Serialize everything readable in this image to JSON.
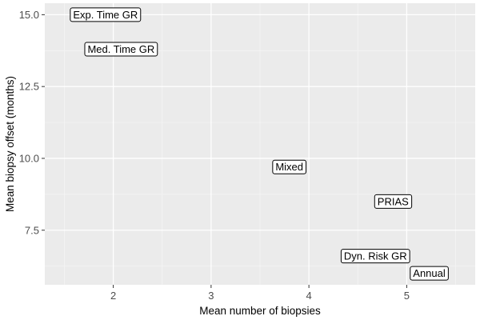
{
  "chart_data": {
    "type": "scatter",
    "title": "",
    "xlabel": "Mean number of biopsies",
    "ylabel": "Mean biopsy offset (months)",
    "xlim": [
      1.3,
      5.7
    ],
    "ylim": [
      5.6,
      15.4
    ],
    "x_ticks": [
      2,
      3,
      4,
      5
    ],
    "y_ticks": [
      7.5,
      10.0,
      12.5,
      15.0
    ],
    "x_tick_labels": [
      "2",
      "3",
      "4",
      "5"
    ],
    "y_tick_labels": [
      "7.5",
      "10.0",
      "12.5",
      "15.0"
    ],
    "grid": true,
    "points": [
      {
        "label": "Exp. Time GR",
        "x": 1.92,
        "y": 15.0
      },
      {
        "label": "Med. Time GR",
        "x": 2.08,
        "y": 13.8
      },
      {
        "label": "Mixed",
        "x": 3.8,
        "y": 9.7
      },
      {
        "label": "PRIAS",
        "x": 4.86,
        "y": 8.5
      },
      {
        "label": "Dyn. Risk GR",
        "x": 4.68,
        "y": 6.6
      },
      {
        "label": "Annual",
        "x": 5.23,
        "y": 6.0
      }
    ],
    "colors": {
      "panel_background": "#ebebeb",
      "grid_major": "#ffffff",
      "label_fill": "#ffffff",
      "label_border": "#000000"
    }
  }
}
